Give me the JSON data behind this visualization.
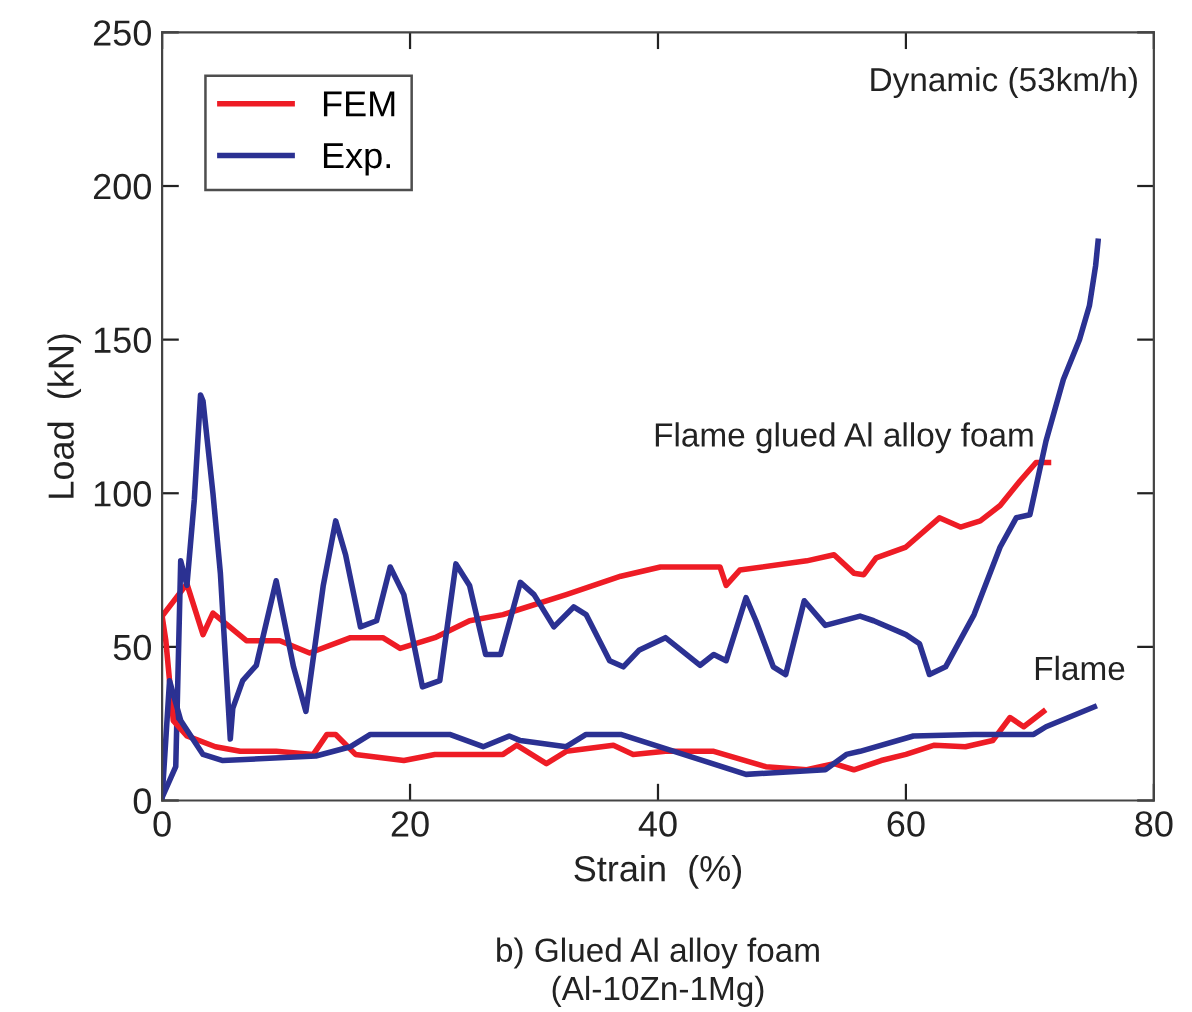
{
  "chart_data": {
    "type": "line",
    "xlabel": "Strain  (%)",
    "ylabel": "Load  (kN)",
    "xlim": [
      0,
      80
    ],
    "xticks": [
      0,
      20,
      40,
      60,
      80
    ],
    "ylim": [
      0,
      250
    ],
    "yticks": [
      0,
      50,
      100,
      150,
      200,
      250
    ],
    "grid": false,
    "legend": "top left",
    "line_style": "solid",
    "marker": "none",
    "annotations": [
      "Dynamic (53km/h)",
      "Flame glued Al alloy foam",
      "Flame",
      "b) Glued Al alloy foam\n(Al-10Zn-1Mg)"
    ],
    "series": [
      {
        "name": "FEM",
        "color": "#ee1c25",
        "x": [
          0,
          2,
          3.3,
          4.1,
          6.8,
          9.5,
          11.9,
          15.2,
          17.8,
          19.2,
          22,
          24.8,
          27.5,
          32.6,
          37,
          40.2,
          45,
          45.5,
          46.6,
          52,
          54.2,
          55.8,
          56.6,
          57.6,
          60,
          62.7,
          64.4,
          66,
          67.6,
          69.2,
          70.5,
          71.5
        ],
        "values": [
          60,
          70.5,
          54,
          61,
          52,
          52,
          48,
          53,
          53,
          49.5,
          53,
          58.5,
          60.5,
          67,
          73,
          76,
          76,
          70,
          75,
          78,
          80,
          74,
          73.5,
          79,
          82.5,
          92,
          89,
          91,
          96,
          104,
          110,
          110
        ]
      },
      {
        "name": "Exp.",
        "color": "#2b3192",
        "x": [
          0,
          1.1,
          1.5,
          2,
          2.6,
          3.1,
          3.3,
          4.1,
          4.7,
          5.5,
          5.7,
          6.5,
          7.6,
          9.2,
          10.6,
          11.6,
          13,
          14,
          14.8,
          16,
          17.3,
          18.4,
          19.5,
          21,
          22.4,
          23.7,
          24.8,
          26.1,
          27.3,
          28.9,
          30,
          31.6,
          33.2,
          34.2,
          36.1,
          37.2,
          38.5,
          40.6,
          43.4,
          44.5,
          45.5,
          47.1,
          47.9,
          49.3,
          50.3,
          51.8,
          53.5,
          56.3,
          57.4,
          60,
          61.1,
          61.9,
          63.2,
          65.5,
          67.6,
          68.9,
          70,
          71.3,
          72.7,
          74,
          74.8,
          75.3,
          75.5
        ],
        "values": [
          1,
          11,
          78,
          70,
          98,
          132,
          130,
          100,
          74,
          20,
          30,
          39,
          44,
          71.5,
          43.5,
          29,
          70,
          91,
          80,
          56.5,
          58.5,
          76,
          67,
          37,
          39,
          77,
          70,
          47.5,
          47.5,
          71,
          67,
          56.5,
          63,
          60.5,
          45.5,
          43.5,
          49,
          53,
          44,
          47.5,
          45.5,
          66,
          58.5,
          43.5,
          41,
          65,
          57,
          60,
          58.5,
          54,
          51,
          41,
          43.5,
          60.5,
          82.5,
          92,
          93,
          117,
          137,
          150,
          161,
          174,
          182
        ]
      },
      {
        "color": "#ee1c25",
        "x": [
          0,
          0.3,
          0.9,
          2,
          4.3,
          6.3,
          9.2,
          12.2,
          13.3,
          14,
          15.6,
          19.5,
          22,
          27.5,
          28.6,
          31,
          32.6,
          36.4,
          38,
          40.6,
          44.5,
          48.7,
          52,
          54.2,
          55.8,
          58,
          60,
          62.3,
          64.8,
          67,
          68.4,
          69.5,
          71.1
        ],
        "values": [
          60,
          52,
          26,
          21,
          17.5,
          16,
          16,
          15,
          21.5,
          21.5,
          15,
          13,
          15,
          15,
          18,
          12,
          16,
          18,
          15,
          16,
          16,
          11,
          10,
          12,
          10,
          13,
          15,
          18,
          17.5,
          19.5,
          27,
          24,
          29
        ]
      },
      {
        "color": "#2b3192",
        "x": [
          0,
          0.6,
          1.5,
          3.3,
          4.9,
          12.4,
          15.2,
          16.8,
          21.6,
          23.2,
          25.9,
          28,
          28.9,
          32.6,
          34.2,
          37,
          41.3,
          47.1,
          53.5,
          55.2,
          56.3,
          60.6,
          65.5,
          70.3,
          71.3,
          75.2
        ],
        "values": [
          1,
          39,
          26,
          15,
          13,
          14.5,
          17.5,
          21.5,
          21.5,
          21.5,
          17.5,
          21,
          19.5,
          17.5,
          21.5,
          21.5,
          16,
          8.5,
          10,
          15,
          16,
          21,
          21.5,
          21.5,
          24,
          30.5
        ]
      }
    ]
  }
}
